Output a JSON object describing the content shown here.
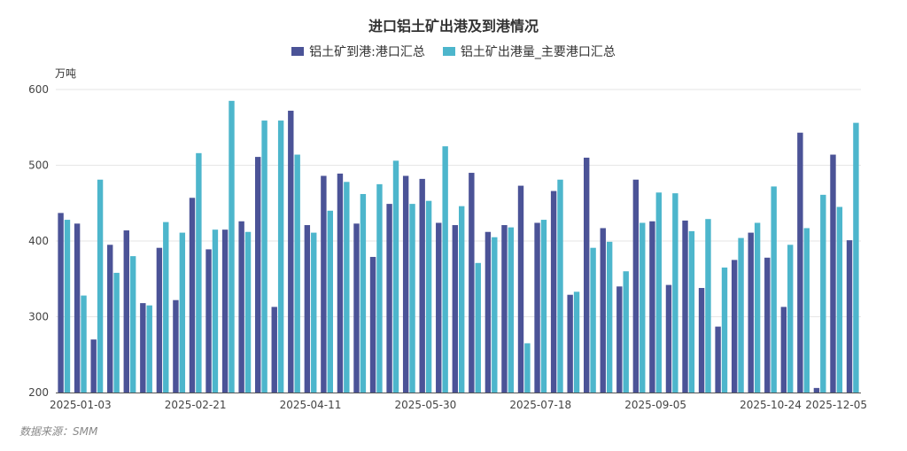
{
  "chart_data": {
    "type": "bar",
    "title": "进口铝土矿出港及到港情况",
    "ylabel": "万吨",
    "ylim": [
      200,
      600
    ],
    "yticks": [
      200,
      300,
      400,
      500,
      600
    ],
    "x_tick_labels": [
      {
        "index": 1,
        "label": "2025-01-03"
      },
      {
        "index": 8,
        "label": "2025-02-21"
      },
      {
        "index": 15,
        "label": "2025-04-11"
      },
      {
        "index": 22,
        "label": "2025-05-30"
      },
      {
        "index": 29,
        "label": "2025-07-18"
      },
      {
        "index": 36,
        "label": "2025-09-05"
      },
      {
        "index": 43,
        "label": "2025-10-24"
      },
      {
        "index": 47,
        "label": "2025-12-05"
      }
    ],
    "series": [
      {
        "name": "铝土矿到港:港口汇总",
        "color": "#4b5397",
        "values": [
          437,
          423,
          270,
          395,
          414,
          318,
          391,
          322,
          457,
          389,
          415,
          426,
          511,
          313,
          572,
          421,
          486,
          489,
          423,
          379,
          449,
          486,
          482,
          424,
          421,
          490,
          412,
          421,
          473,
          424,
          466,
          329,
          510,
          417,
          340,
          481,
          426,
          342,
          427,
          338,
          287,
          375,
          411,
          378,
          313,
          543,
          206,
          514,
          401
        ]
      },
      {
        "name": "铝土矿出港量_主要港口汇总",
        "color": "#4db6cc",
        "values": [
          428,
          328,
          481,
          358,
          380,
          315,
          425,
          411,
          516,
          415,
          585,
          412,
          559,
          559,
          514,
          411,
          440,
          478,
          462,
          475,
          506,
          449,
          453,
          525,
          446,
          371,
          405,
          418,
          265,
          428,
          481,
          333,
          391,
          399,
          360,
          424,
          464,
          463,
          413,
          429,
          365,
          404,
          424,
          472,
          395,
          417,
          461,
          445,
          556
        ]
      }
    ],
    "legend_position": "top",
    "grid": true
  },
  "source_label": "数据来源：SMM"
}
